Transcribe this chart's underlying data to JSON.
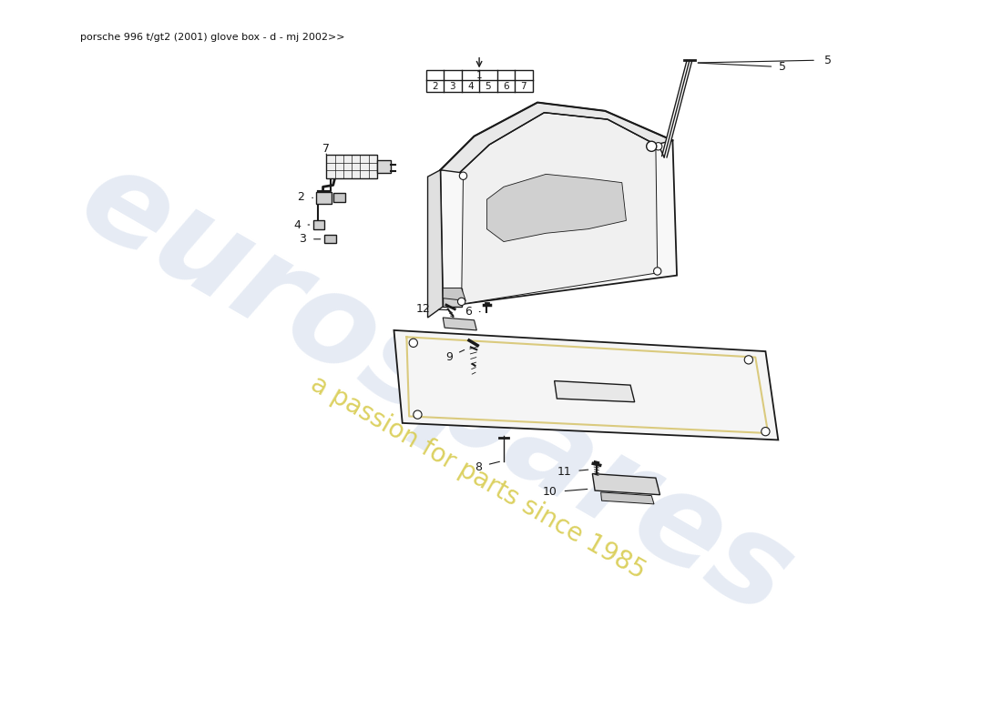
{
  "title": "porsche 996 t/gt2 (2001) glove box - d - mj 2002>>",
  "background_color": "#ffffff",
  "watermark_color1": "#c8d4e8",
  "watermark_color2": "#d8cc50",
  "line_color": "#1a1a1a",
  "lw": 1.0,
  "fs": 9,
  "title_fs": 8
}
